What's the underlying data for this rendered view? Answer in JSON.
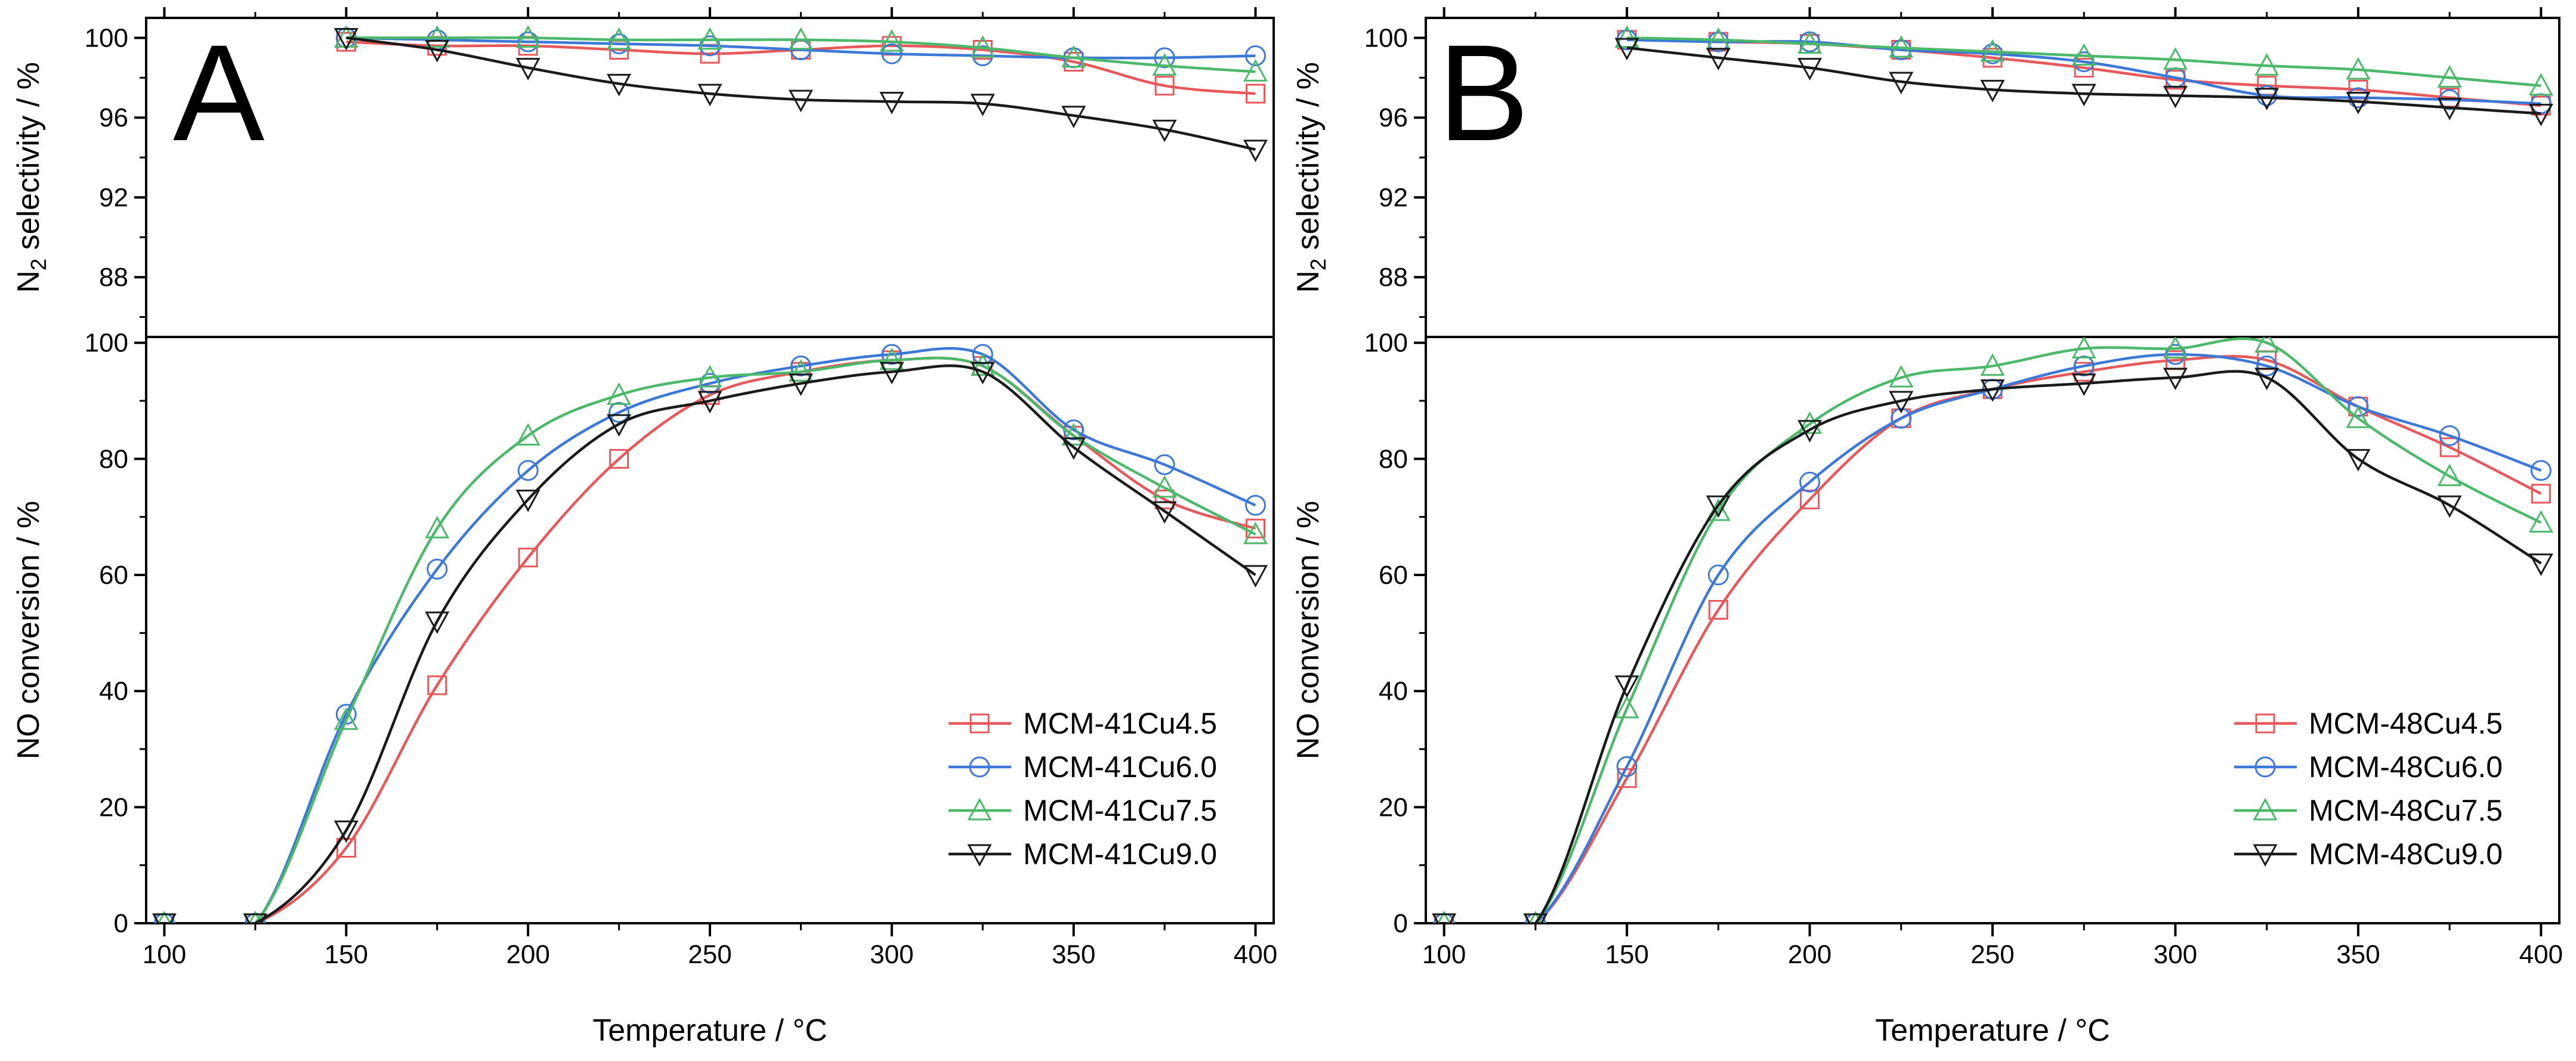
{
  "chart_data": [
    {
      "panel_label": "A",
      "type": "line",
      "xlabel": "Temperature / °C",
      "x_ticks": [
        "100",
        "150",
        "200",
        "250",
        "300",
        "350",
        "400"
      ],
      "xlim": [
        95,
        405
      ],
      "legend_position": "bottom-right",
      "top": {
        "ylabel_main": "N",
        "ylabel_sub": "2",
        "ylabel_rest": " selectivity / %",
        "ylim": [
          85,
          101
        ],
        "y_ticks": [
          "100",
          "96",
          "92",
          "88"
        ],
        "x": [
          150,
          175,
          200,
          225,
          250,
          275,
          300,
          325,
          350,
          375,
          400
        ],
        "series": [
          {
            "name": "MCM-41Cu4.5",
            "color": "#e8585a",
            "marker": "square",
            "values": [
              99.8,
              99.6,
              99.6,
              99.4,
              99.2,
              99.4,
              99.6,
              99.4,
              98.8,
              97.6,
              97.2
            ]
          },
          {
            "name": "MCM-41Cu6.0",
            "color": "#3b78d8",
            "marker": "circle",
            "values": [
              100.0,
              99.9,
              99.8,
              99.7,
              99.6,
              99.4,
              99.2,
              99.1,
              99.0,
              99.0,
              99.1
            ]
          },
          {
            "name": "MCM-41Cu7.5",
            "color": "#4cb86a",
            "marker": "triangle-up",
            "values": [
              100.0,
              100.0,
              100.0,
              99.9,
              99.9,
              99.9,
              99.8,
              99.5,
              99.0,
              98.6,
              98.3
            ]
          },
          {
            "name": "MCM-41Cu9.0",
            "color": "#1a1a1a",
            "marker": "triangle-down",
            "values": [
              100.0,
              99.4,
              98.5,
              97.7,
              97.2,
              96.9,
              96.8,
              96.7,
              96.1,
              95.4,
              94.4
            ]
          }
        ]
      },
      "bottom": {
        "ylabel": "NO conversion / %",
        "ylim": [
          0,
          101
        ],
        "y_ticks": [
          "100",
          "80",
          "60",
          "40",
          "20",
          "0"
        ],
        "x": [
          100,
          125,
          150,
          175,
          200,
          225,
          250,
          275,
          300,
          325,
          350,
          375,
          400
        ],
        "series": [
          {
            "name": "MCM-41Cu4.5",
            "color": "#e8585a",
            "marker": "square",
            "values": [
              0,
              0,
              13,
              41,
              63,
              80,
              91,
              95,
              97,
              96,
              84,
              73,
              68
            ]
          },
          {
            "name": "MCM-41Cu6.0",
            "color": "#3b78d8",
            "marker": "circle",
            "values": [
              0,
              0,
              36,
              61,
              78,
              88,
              93,
              96,
              98,
              98,
              85,
              79,
              72
            ]
          },
          {
            "name": "MCM-41Cu7.5",
            "color": "#4cb86a",
            "marker": "triangle-up",
            "values": [
              0,
              0,
              35,
              68,
              84,
              91,
              94,
              95,
              97,
              96,
              84,
              75,
              67
            ]
          },
          {
            "name": "MCM-41Cu9.0",
            "color": "#1a1a1a",
            "marker": "triangle-down",
            "values": [
              0,
              0,
              16,
              52,
              73,
              86,
              90,
              93,
              95,
              95,
              82,
              71,
              60
            ]
          }
        ]
      }
    },
    {
      "panel_label": "B",
      "type": "line",
      "xlabel": "Temperature / °C",
      "x_ticks": [
        "100",
        "150",
        "200",
        "250",
        "300",
        "350",
        "400"
      ],
      "xlim": [
        95,
        405
      ],
      "legend_position": "bottom-right",
      "top": {
        "ylabel_main": "N",
        "ylabel_sub": "2",
        "ylabel_rest": " selectivity / %",
        "ylim": [
          85,
          101
        ],
        "y_ticks": [
          "100",
          "96",
          "92",
          "88"
        ],
        "x": [
          150,
          175,
          200,
          225,
          250,
          275,
          300,
          325,
          350,
          375,
          400
        ],
        "series": [
          {
            "name": "MCM-48Cu4.5",
            "color": "#e8585a",
            "marker": "square",
            "values": [
              99.9,
              99.8,
              99.7,
              99.4,
              99.0,
              98.5,
              97.9,
              97.6,
              97.4,
              97.0,
              96.6
            ]
          },
          {
            "name": "MCM-48Cu6.0",
            "color": "#3b78d8",
            "marker": "circle",
            "values": [
              99.9,
              99.8,
              99.8,
              99.4,
              99.2,
              98.8,
              98.0,
              97.1,
              97.0,
              96.9,
              96.7
            ]
          },
          {
            "name": "MCM-48Cu7.5",
            "color": "#4cb86a",
            "marker": "triangle-up",
            "values": [
              100.0,
              99.9,
              99.7,
              99.5,
              99.3,
              99.1,
              98.9,
              98.6,
              98.4,
              98.0,
              97.6
            ]
          },
          {
            "name": "MCM-48Cu9.0",
            "color": "#1a1a1a",
            "marker": "triangle-down",
            "values": [
              99.5,
              99.0,
              98.5,
              97.8,
              97.4,
              97.2,
              97.1,
              97.0,
              96.8,
              96.5,
              96.2
            ]
          }
        ]
      },
      "bottom": {
        "ylabel": "NO conversion / %",
        "ylim": [
          0,
          101
        ],
        "y_ticks": [
          "100",
          "80",
          "60",
          "40",
          "20",
          "0"
        ],
        "x": [
          100,
          125,
          150,
          175,
          200,
          225,
          250,
          275,
          300,
          325,
          350,
          375,
          400
        ],
        "series": [
          {
            "name": "MCM-48Cu4.5",
            "color": "#e8585a",
            "marker": "square",
            "values": [
              0,
              0,
              25,
              54,
              73,
              87,
              92,
              95,
              97,
              97,
              89,
              82,
              74
            ]
          },
          {
            "name": "MCM-48Cu6.0",
            "color": "#3b78d8",
            "marker": "circle",
            "values": [
              0,
              0,
              27,
              60,
              76,
              87,
              92,
              96,
              98,
              96,
              89,
              84,
              78
            ]
          },
          {
            "name": "MCM-48Cu7.5",
            "color": "#4cb86a",
            "marker": "triangle-up",
            "values": [
              0,
              0,
              37,
              71,
              86,
              94,
              96,
              99,
              99,
              100,
              87,
              77,
              69
            ]
          },
          {
            "name": "MCM-48Cu9.0",
            "color": "#1a1a1a",
            "marker": "triangle-down",
            "values": [
              0,
              0,
              41,
              72,
              85,
              90,
              92,
              93,
              94,
              94,
              80,
              72,
              62
            ]
          }
        ]
      }
    }
  ]
}
